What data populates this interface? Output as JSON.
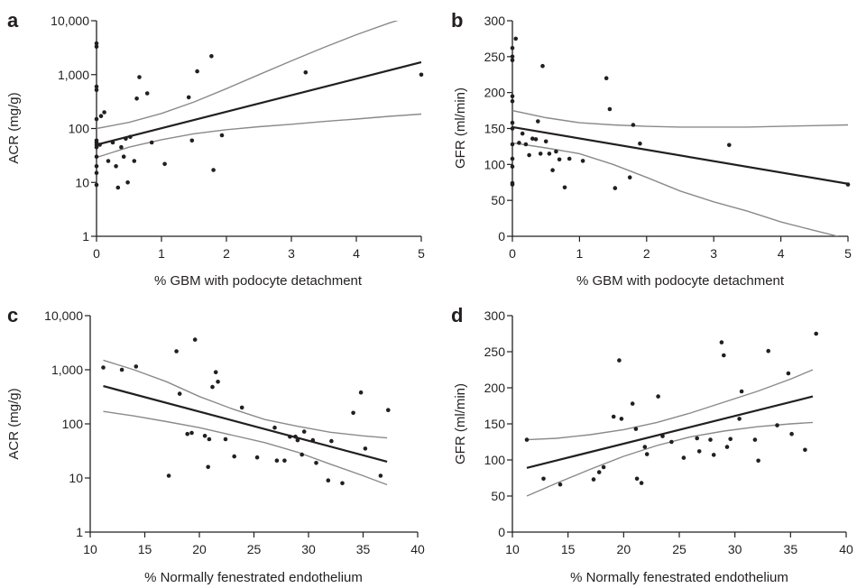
{
  "chart_data": [
    {
      "panel": "a",
      "type": "scatter",
      "xlabel": "% GBM with podocyte detachment",
      "ylabel": "ACR (mg/g)",
      "xlim": [
        0,
        5
      ],
      "ylim": [
        1,
        10000
      ],
      "yscale": "log",
      "xticks": [
        0,
        1,
        2,
        3,
        4,
        5
      ],
      "xtick_labels": [
        "0",
        "1",
        "2",
        "3",
        "4",
        "5"
      ],
      "yticks": [
        1,
        10,
        100,
        1000,
        10000
      ],
      "ytick_labels": [
        "1",
        "10",
        "100",
        "1,000",
        "10,000"
      ],
      "points": [
        [
          0,
          3800
        ],
        [
          0,
          3300
        ],
        [
          0,
          600
        ],
        [
          0,
          520
        ],
        [
          0,
          150
        ],
        [
          0,
          60
        ],
        [
          0,
          55
        ],
        [
          0,
          50
        ],
        [
          0,
          45
        ],
        [
          0,
          30
        ],
        [
          0,
          20
        ],
        [
          0,
          15
        ],
        [
          0,
          9
        ],
        [
          0.05,
          50
        ],
        [
          0.07,
          170
        ],
        [
          0.12,
          200
        ],
        [
          0.18,
          25
        ],
        [
          0.25,
          55
        ],
        [
          0.3,
          20
        ],
        [
          0.33,
          8
        ],
        [
          0.38,
          45
        ],
        [
          0.42,
          30
        ],
        [
          0.45,
          65
        ],
        [
          0.48,
          10
        ],
        [
          0.52,
          70
        ],
        [
          0.58,
          25
        ],
        [
          0.62,
          360
        ],
        [
          0.66,
          900
        ],
        [
          0.78,
          450
        ],
        [
          0.85,
          55
        ],
        [
          1.05,
          22
        ],
        [
          1.42,
          380
        ],
        [
          1.47,
          60
        ],
        [
          1.55,
          1150
        ],
        [
          1.77,
          2200
        ],
        [
          1.8,
          17
        ],
        [
          1.93,
          75
        ],
        [
          3.22,
          1100
        ],
        [
          5.0,
          1000
        ]
      ],
      "fit": {
        "x": [
          0,
          5
        ],
        "y": [
          50,
          1700
        ]
      },
      "ci_upper": {
        "x": [
          0,
          0.5,
          1,
          1.5,
          2,
          2.5,
          3,
          3.5,
          4,
          4.5,
          5
        ],
        "y": [
          100,
          130,
          190,
          310,
          550,
          1000,
          1800,
          3200,
          5500,
          9000,
          14000
        ]
      },
      "ci_lower": {
        "x": [
          0,
          0.5,
          1,
          1.5,
          2,
          2.5,
          3,
          3.5,
          4,
          4.5,
          5
        ],
        "y": [
          29,
          45,
          62,
          80,
          95,
          108,
          120,
          135,
          150,
          168,
          185
        ]
      }
    },
    {
      "panel": "b",
      "type": "scatter",
      "xlabel": "% GBM with podocyte detachment",
      "ylabel": "GFR (ml/min)",
      "xlim": [
        0,
        5
      ],
      "ylim": [
        0,
        300
      ],
      "yscale": "linear",
      "xticks": [
        0,
        1,
        2,
        3,
        4,
        5
      ],
      "xtick_labels": [
        "0",
        "1",
        "2",
        "3",
        "4",
        "5"
      ],
      "yticks": [
        0,
        50,
        100,
        150,
        200,
        250,
        300
      ],
      "ytick_labels": [
        "0",
        "50",
        "100",
        "150",
        "200",
        "250",
        "300"
      ],
      "points": [
        [
          0,
          262
        ],
        [
          0,
          250
        ],
        [
          0,
          245
        ],
        [
          0,
          195
        ],
        [
          0,
          188
        ],
        [
          0,
          158
        ],
        [
          0,
          150
        ],
        [
          0,
          128
        ],
        [
          0,
          108
        ],
        [
          0,
          97
        ],
        [
          0,
          74
        ],
        [
          0,
          72
        ],
        [
          0.05,
          275
        ],
        [
          0.1,
          130
        ],
        [
          0.15,
          143
        ],
        [
          0.2,
          128
        ],
        [
          0.25,
          113
        ],
        [
          0.3,
          136
        ],
        [
          0.35,
          135
        ],
        [
          0.38,
          160
        ],
        [
          0.42,
          115
        ],
        [
          0.45,
          237
        ],
        [
          0.5,
          132
        ],
        [
          0.55,
          115
        ],
        [
          0.6,
          92
        ],
        [
          0.65,
          118
        ],
        [
          0.7,
          107
        ],
        [
          0.78,
          68
        ],
        [
          0.85,
          108
        ],
        [
          1.05,
          105
        ],
        [
          1.4,
          220
        ],
        [
          1.45,
          177
        ],
        [
          1.53,
          67
        ],
        [
          1.75,
          82
        ],
        [
          1.8,
          155
        ],
        [
          1.9,
          129
        ],
        [
          3.23,
          127
        ],
        [
          5.0,
          72
        ]
      ],
      "fit": {
        "x": [
          0,
          5
        ],
        "y": [
          152,
          73
        ]
      },
      "ci_upper": {
        "x": [
          0,
          0.5,
          1,
          1.5,
          2,
          2.5,
          3,
          3.5,
          4,
          4.5,
          5
        ],
        "y": [
          175,
          165,
          158,
          155,
          153,
          152,
          152,
          152,
          153,
          154,
          155
        ]
      },
      "ci_lower": {
        "x": [
          0,
          0.5,
          1,
          1.5,
          2,
          2.5,
          3,
          3.5,
          4,
          4.5,
          4.85
        ],
        "y": [
          130,
          123,
          115,
          100,
          82,
          63,
          48,
          35,
          20,
          8,
          0
        ]
      }
    },
    {
      "panel": "c",
      "type": "scatter",
      "xlabel": "% Normally fenestrated endothelium",
      "ylabel": "ACR (mg/g)",
      "xlim": [
        10,
        40
      ],
      "ylim": [
        1,
        10000
      ],
      "yscale": "log",
      "xticks": [
        10,
        15,
        20,
        25,
        30,
        35,
        40
      ],
      "xtick_labels": [
        "10",
        "15",
        "20",
        "25",
        "30",
        "35",
        "40"
      ],
      "yticks": [
        1,
        10,
        100,
        1000,
        10000
      ],
      "ytick_labels": [
        "1",
        "10",
        "100",
        "1,000",
        "10,000"
      ],
      "points": [
        [
          11.2,
          1100
        ],
        [
          12.9,
          1000
        ],
        [
          14.2,
          1150
        ],
        [
          17.2,
          11
        ],
        [
          17.9,
          2200
        ],
        [
          18.2,
          360
        ],
        [
          18.9,
          65
        ],
        [
          19.3,
          68
        ],
        [
          19.6,
          3600
        ],
        [
          20.5,
          60
        ],
        [
          20.8,
          16
        ],
        [
          20.9,
          52
        ],
        [
          21.2,
          480
        ],
        [
          21.5,
          900
        ],
        [
          21.7,
          600
        ],
        [
          22.4,
          52
        ],
        [
          23.2,
          25
        ],
        [
          23.9,
          200
        ],
        [
          25.3,
          24
        ],
        [
          26.9,
          85
        ],
        [
          27.1,
          21
        ],
        [
          27.8,
          21
        ],
        [
          28.3,
          58
        ],
        [
          28.8,
          58
        ],
        [
          29.0,
          50
        ],
        [
          29.4,
          27
        ],
        [
          29.6,
          72
        ],
        [
          30.4,
          50
        ],
        [
          30.7,
          19
        ],
        [
          31.8,
          9
        ],
        [
          32.1,
          48
        ],
        [
          33.1,
          8
        ],
        [
          34.1,
          160
        ],
        [
          34.8,
          380
        ],
        [
          35.2,
          35
        ],
        [
          36.6,
          11
        ],
        [
          37.3,
          180
        ]
      ],
      "fit": {
        "x": [
          11.2,
          37.2
        ],
        "y": [
          500,
          20
        ]
      },
      "ci_upper": {
        "x": [
          11.2,
          14,
          17,
          20,
          23,
          26,
          29,
          32,
          35,
          37.2
        ],
        "y": [
          1500,
          1000,
          600,
          320,
          190,
          120,
          90,
          70,
          60,
          55
        ]
      },
      "ci_lower": {
        "x": [
          11.2,
          14,
          17,
          20,
          23,
          26,
          29,
          32,
          35,
          37.2
        ],
        "y": [
          170,
          140,
          110,
          85,
          62,
          45,
          30,
          18,
          11,
          7.5
        ]
      }
    },
    {
      "panel": "d",
      "type": "scatter",
      "xlabel": "% Normally fenestrated endothelium",
      "ylabel": "GFR (ml/min)",
      "xlim": [
        10,
        40
      ],
      "ylim": [
        0,
        300
      ],
      "yscale": "linear",
      "xticks": [
        10,
        15,
        20,
        25,
        30,
        35,
        40
      ],
      "xtick_labels": [
        "10",
        "15",
        "20",
        "25",
        "30",
        "35",
        "40"
      ],
      "yticks": [
        0,
        50,
        100,
        150,
        200,
        250,
        300
      ],
      "ytick_labels": [
        "0",
        "50",
        "100",
        "150",
        "200",
        "250",
        "300"
      ],
      "points": [
        [
          11.3,
          128
        ],
        [
          12.8,
          74
        ],
        [
          14.3,
          66
        ],
        [
          17.3,
          73
        ],
        [
          17.8,
          83
        ],
        [
          18.2,
          90
        ],
        [
          19.1,
          160
        ],
        [
          19.6,
          238
        ],
        [
          19.8,
          157
        ],
        [
          20.8,
          178
        ],
        [
          21.1,
          143
        ],
        [
          21.2,
          74
        ],
        [
          21.6,
          68
        ],
        [
          21.9,
          118
        ],
        [
          22.1,
          108
        ],
        [
          23.1,
          188
        ],
        [
          23.5,
          133
        ],
        [
          24.3,
          125
        ],
        [
          25.4,
          103
        ],
        [
          26.6,
          130
        ],
        [
          26.8,
          112
        ],
        [
          27.8,
          128
        ],
        [
          28.1,
          107
        ],
        [
          28.8,
          263
        ],
        [
          29.0,
          245
        ],
        [
          29.3,
          118
        ],
        [
          29.6,
          129
        ],
        [
          30.4,
          157
        ],
        [
          30.6,
          195
        ],
        [
          31.8,
          128
        ],
        [
          32.1,
          99
        ],
        [
          33.0,
          251
        ],
        [
          33.8,
          148
        ],
        [
          34.8,
          220
        ],
        [
          35.1,
          136
        ],
        [
          36.3,
          114
        ],
        [
          37.3,
          275
        ]
      ],
      "fit": {
        "x": [
          11.3,
          37
        ],
        "y": [
          89,
          188
        ]
      },
      "ci_upper": {
        "x": [
          11.3,
          14,
          17,
          20,
          23,
          26,
          29,
          32,
          35,
          37
        ],
        "y": [
          128,
          130,
          135,
          142,
          152,
          165,
          180,
          195,
          212,
          225
        ]
      },
      "ci_lower": {
        "x": [
          11.3,
          14,
          17,
          20,
          23,
          26,
          29,
          32,
          35,
          37
        ],
        "y": [
          50,
          68,
          87,
          105,
          120,
          132,
          140,
          146,
          150,
          152
        ]
      }
    }
  ]
}
